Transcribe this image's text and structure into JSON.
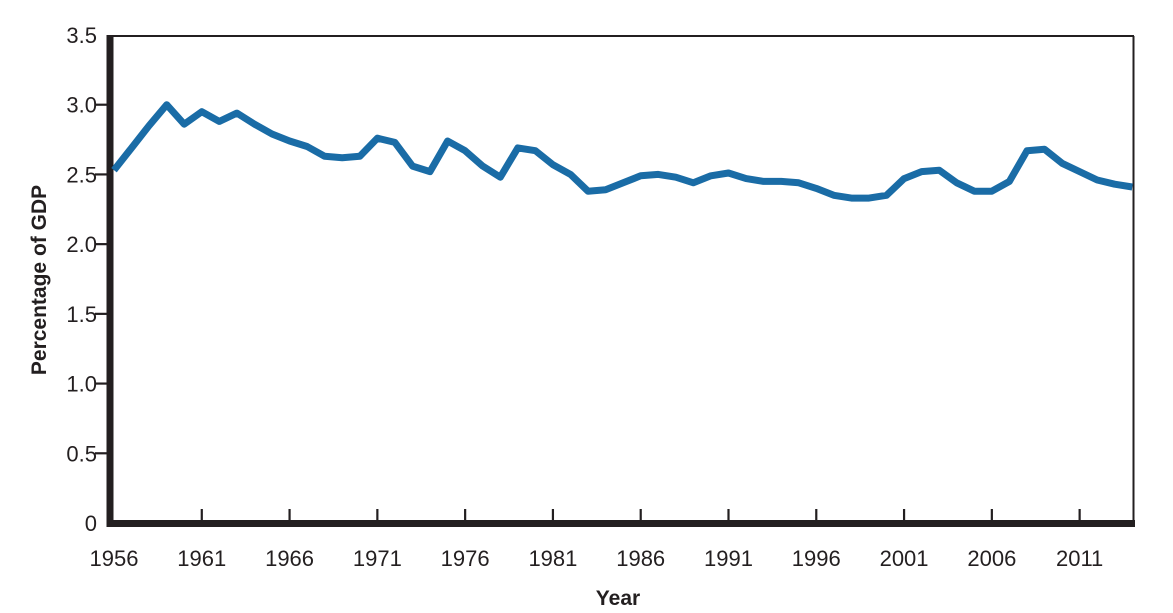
{
  "chart_data": {
    "type": "line",
    "title": "",
    "xlabel": "Year",
    "ylabel": "Percentage of GDP",
    "xlim": [
      1956,
      2014
    ],
    "ylim": [
      0,
      3.5
    ],
    "grid": false,
    "legend": "none",
    "x_tick_labels": [
      "1956",
      "1961",
      "1966",
      "1971",
      "1976",
      "1981",
      "1986",
      "1991",
      "1996",
      "2001",
      "2006",
      "2011"
    ],
    "x_tick_values": [
      1956,
      1961,
      1966,
      1971,
      1976,
      1981,
      1986,
      1991,
      1996,
      2001,
      2006,
      2011
    ],
    "x_tick_marks": [
      1961,
      1966,
      1971,
      1976,
      1981,
      1986,
      1991,
      1996,
      2001,
      2006,
      2011
    ],
    "y_tick_labels": [
      "0",
      "0.5",
      "1.0",
      "1.5",
      "2.0",
      "2.5",
      "3.0",
      "3.5"
    ],
    "y_tick_values": [
      0,
      0.5,
      1.0,
      1.5,
      2.0,
      2.5,
      3.0,
      3.5
    ],
    "y_tick_marks": [
      0.5,
      1.0,
      1.5,
      2.0,
      2.5,
      3.0
    ],
    "line_color": "#1a6ca6",
    "axis_color": "#231f20",
    "series": [
      {
        "name": "Percentage of GDP",
        "x": [
          1956,
          1957,
          1958,
          1959,
          1960,
          1961,
          1962,
          1963,
          1964,
          1965,
          1966,
          1967,
          1968,
          1969,
          1970,
          1971,
          1972,
          1973,
          1974,
          1975,
          1976,
          1977,
          1978,
          1979,
          1980,
          1981,
          1982,
          1983,
          1984,
          1985,
          1986,
          1987,
          1988,
          1989,
          1990,
          1991,
          1992,
          1993,
          1994,
          1995,
          1996,
          1997,
          1998,
          1999,
          2000,
          2001,
          2002,
          2003,
          2004,
          2005,
          2006,
          2007,
          2008,
          2009,
          2010,
          2011,
          2012,
          2013,
          2014
        ],
        "values": [
          2.53,
          2.69,
          2.85,
          3.0,
          2.86,
          2.95,
          2.88,
          2.94,
          2.86,
          2.79,
          2.74,
          2.7,
          2.63,
          2.62,
          2.63,
          2.76,
          2.73,
          2.56,
          2.52,
          2.74,
          2.67,
          2.56,
          2.48,
          2.69,
          2.67,
          2.57,
          2.5,
          2.38,
          2.39,
          2.44,
          2.49,
          2.5,
          2.48,
          2.44,
          2.49,
          2.51,
          2.47,
          2.45,
          2.45,
          2.44,
          2.4,
          2.35,
          2.33,
          2.33,
          2.35,
          2.47,
          2.52,
          2.53,
          2.44,
          2.38,
          2.38,
          2.45,
          2.67,
          2.68,
          2.58,
          2.52,
          2.46,
          2.43,
          2.41
        ]
      }
    ]
  }
}
